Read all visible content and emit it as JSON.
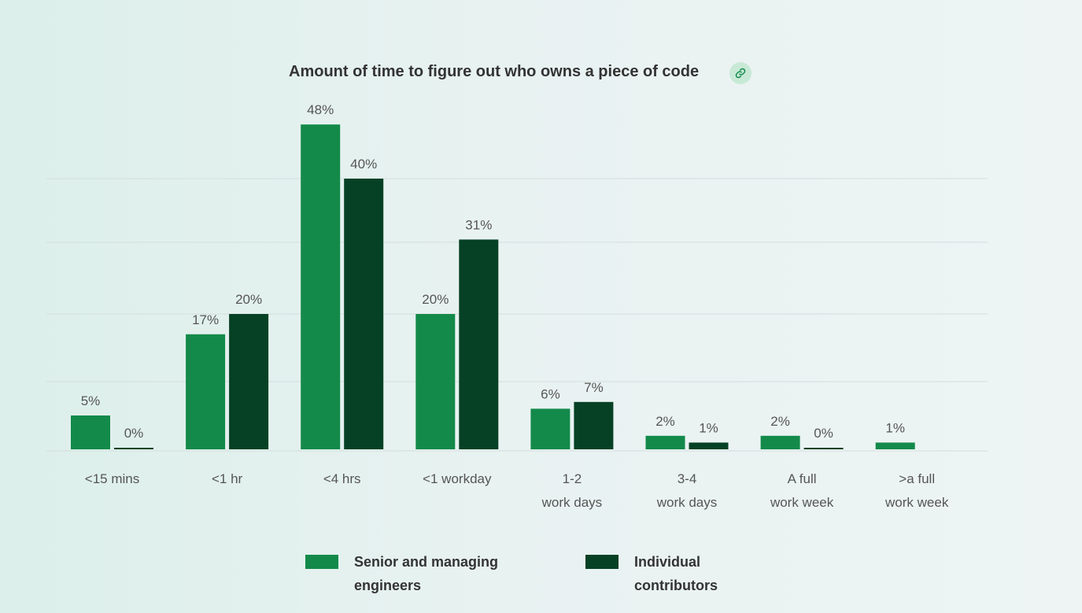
{
  "colors": {
    "senior": "#138a4a",
    "individual": "#064125",
    "gridline": "#d3dedd",
    "label": "#555555",
    "link_bg": "#c7e9d6",
    "link_icon": "#138a4a"
  },
  "icons": {
    "link": "link-icon"
  },
  "chart_data": {
    "type": "bar",
    "title": "Amount of time to figure out who owns a piece of code",
    "categories": [
      [
        "<15 mins"
      ],
      [
        "<1 hr"
      ],
      [
        "<4 hrs"
      ],
      [
        "<1 workday"
      ],
      [
        "1-2",
        "work days"
      ],
      [
        "3-4",
        "work days"
      ],
      [
        "A full",
        "work week"
      ],
      [
        ">a full",
        "work week"
      ]
    ],
    "series": [
      {
        "name": "Senior and managing engineers",
        "color_key": "senior",
        "values": [
          5,
          17,
          48,
          20,
          6,
          2,
          2,
          1
        ],
        "labels": [
          "5%",
          "17%",
          "48%",
          "20%",
          "6%",
          "2%",
          "2%",
          "1%"
        ]
      },
      {
        "name": "Individual contributors",
        "color_key": "individual",
        "values": [
          0,
          20,
          40,
          31,
          7,
          1,
          0,
          null
        ],
        "labels": [
          "0%",
          "20%",
          "40%",
          "31%",
          "7%",
          "1%",
          "0%",
          null
        ]
      }
    ],
    "ylim": [
      0,
      50
    ],
    "grid": true,
    "legend_position": "bottom"
  },
  "legend": {
    "items": [
      {
        "label_lines": [
          "Senior and managing",
          "engineers"
        ],
        "color_key": "senior"
      },
      {
        "label_lines": [
          "Individual",
          "contributors"
        ],
        "color_key": "individual"
      }
    ]
  }
}
